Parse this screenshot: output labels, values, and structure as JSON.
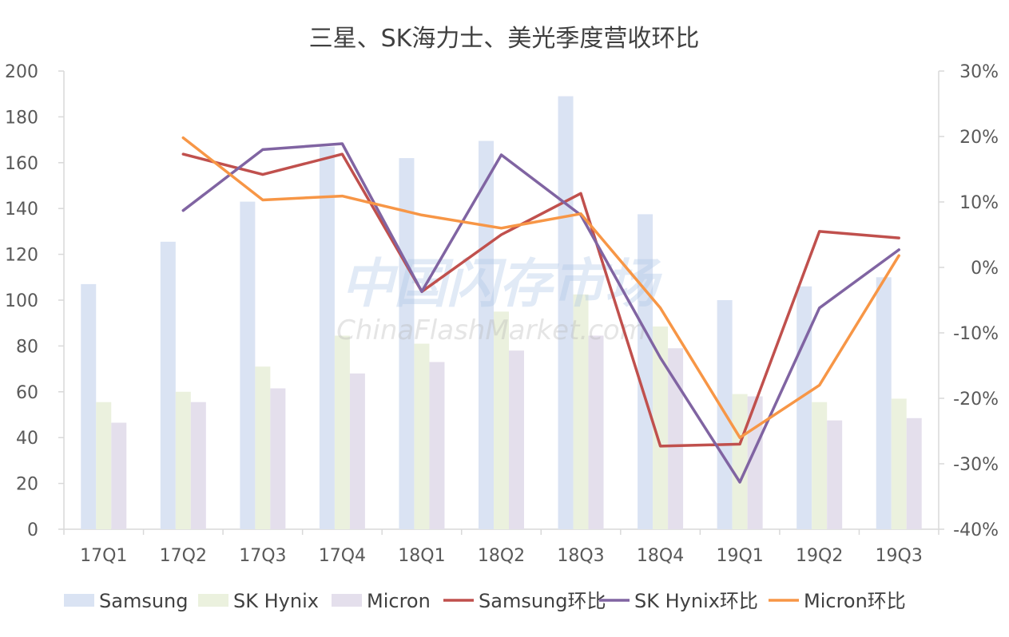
{
  "chart_data": {
    "type": "bar+line",
    "title": "三星、SK海力士、美光季度营收环比",
    "categories": [
      "17Q1",
      "17Q2",
      "17Q3",
      "17Q4",
      "18Q1",
      "18Q2",
      "18Q3",
      "18Q4",
      "19Q1",
      "19Q2",
      "19Q3"
    ],
    "y_left": {
      "min": 0,
      "max": 200,
      "step": 20,
      "ticks": [
        "0",
        "20",
        "40",
        "60",
        "80",
        "100",
        "120",
        "140",
        "160",
        "180",
        "200"
      ]
    },
    "y_right": {
      "min": -40,
      "max": 30,
      "step": 10,
      "ticks": [
        "-40%",
        "-30%",
        "-20%",
        "-10%",
        "0%",
        "10%",
        "20%",
        "30%"
      ]
    },
    "bar_series": [
      {
        "name": "Samsung",
        "color": "#dae3f3",
        "values": [
          107,
          125.5,
          143,
          167,
          162,
          169.5,
          189,
          137.5,
          100,
          106,
          110
        ]
      },
      {
        "name": "SK Hynix",
        "color": "#ebf1de",
        "values": [
          55.5,
          60,
          71,
          84.5,
          81,
          95,
          102.5,
          88.5,
          59,
          55.5,
          57
        ]
      },
      {
        "name": "Micron",
        "color": "#e4dfec",
        "values": [
          46.5,
          55.5,
          61.5,
          68,
          73,
          78,
          84.5,
          79,
          58,
          47.5,
          48.5
        ]
      }
    ],
    "line_series": [
      {
        "name": "Samsung环比",
        "color": "#c0504d",
        "values": [
          null,
          17.3,
          14.2,
          17.3,
          -3.7,
          5.0,
          11.3,
          -27.3,
          -27.0,
          5.5,
          4.5
        ]
      },
      {
        "name": "SK Hynix环比",
        "color": "#8064a2",
        "values": [
          null,
          8.7,
          18.0,
          18.9,
          -3.7,
          17.2,
          8.0,
          -13.8,
          -32.8,
          -6.2,
          2.7
        ]
      },
      {
        "name": "Micron环比",
        "color": "#f79646",
        "values": [
          null,
          19.8,
          10.3,
          10.9,
          8.0,
          6.0,
          8.2,
          -6.2,
          -26.0,
          -18.0,
          1.8
        ]
      }
    ],
    "legend_position": "bottom",
    "grid": false
  },
  "watermark": {
    "line1": "中国闪存市场",
    "line2": "ChinaFlashMarket.com"
  }
}
